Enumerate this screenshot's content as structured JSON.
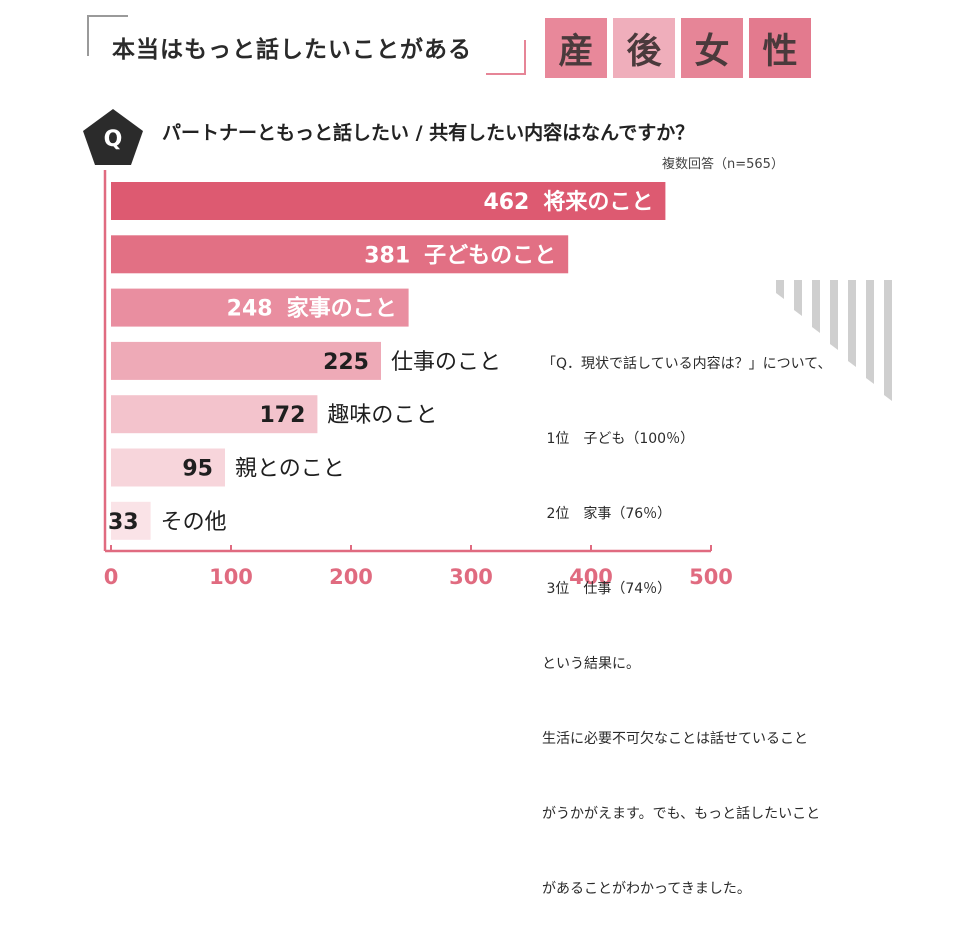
{
  "header": {
    "title": "本当はもっと話したいことがある",
    "badge_chars": [
      "産",
      "後",
      "女",
      "性"
    ],
    "badge_colors": [
      "#e8889a",
      "#efaebb",
      "#e68597",
      "#e37a8e"
    ]
  },
  "question": {
    "mark": "Q",
    "text": "パートナーともっと話したい / 共有したい内容はなんですか？",
    "note": "複数回答（n=565）"
  },
  "note_block": {
    "lines": [
      "「Q．現状で話している内容は？」について、",
      " 1位　子ども（100％）",
      " 2位　家事（76％）",
      " 3位　仕事（74％）",
      "という結果に。",
      "生活に必要不可欠なことは話せていること",
      "がうかがえます。でも、もっと話したいこと",
      "があることがわかってきました。"
    ]
  },
  "colors": {
    "axis": "#e06b80",
    "tick_label": "#e06b80",
    "label_on_bar": "#ffffff",
    "label_outside": "#1f1f1f",
    "stripes": "#cfcfcf"
  },
  "chart_data": {
    "type": "bar",
    "orientation": "horizontal",
    "categories": [
      "将来のこと",
      "子どものこと",
      "家事のこと",
      "仕事のこと",
      "趣味のこと",
      "親とのこと",
      "その他"
    ],
    "values": [
      462,
      381,
      248,
      225,
      172,
      95,
      33
    ],
    "bar_colors": [
      "#dd5a71",
      "#e27084",
      "#e98ea0",
      "#eeaab7",
      "#f3c3cc",
      "#f7d5db",
      "#fae3e7"
    ],
    "xlim": [
      0,
      500
    ],
    "xticks": [
      0,
      100,
      200,
      300,
      400,
      500
    ],
    "title": "",
    "xlabel": "",
    "ylabel": "",
    "grid": false,
    "legend": "none"
  }
}
